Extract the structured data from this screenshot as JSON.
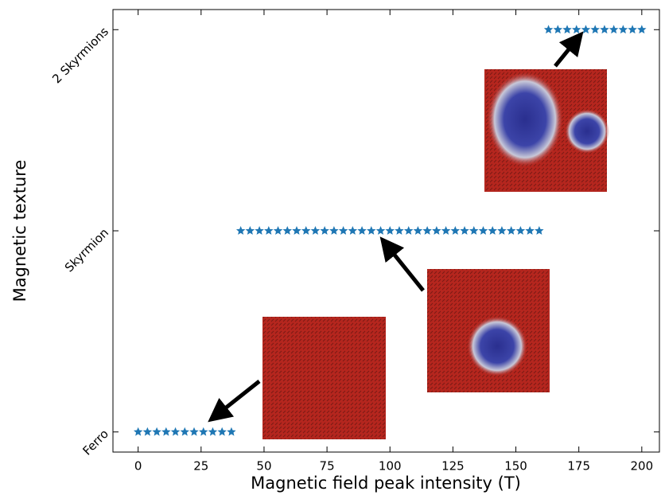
{
  "chart_data": {
    "type": "scatter",
    "xlabel": "Magnetic field peak intensity (T)",
    "ylabel": "Magnetic texture",
    "color": "#1f77b4",
    "x": [
      0,
      3.7,
      7.41,
      11.11,
      14.81,
      18.52,
      22.22,
      25.93,
      29.63,
      33.33,
      37.04,
      40.74,
      44.44,
      48.15,
      51.85,
      55.56,
      59.26,
      62.96,
      66.67,
      70.37,
      74.07,
      77.78,
      81.48,
      85.19,
      88.89,
      92.59,
      96.3,
      100,
      103.7,
      107.41,
      111.11,
      114.81,
      118.52,
      122.22,
      125.93,
      129.63,
      133.33,
      137.04,
      140.74,
      144.44,
      148.15,
      151.85,
      155.56,
      159.26,
      162.96,
      166.67,
      170.37,
      174.07,
      177.78,
      181.48,
      185.19,
      188.89,
      192.59,
      196.3,
      200
    ],
    "values": [
      0,
      0,
      0,
      0,
      0,
      0,
      0,
      0,
      0,
      0,
      0,
      1,
      1,
      1,
      1,
      1,
      1,
      1,
      1,
      1,
      1,
      1,
      1,
      1,
      1,
      1,
      1,
      1,
      1,
      1,
      1,
      1,
      1,
      1,
      1,
      1,
      1,
      1,
      1,
      1,
      1,
      1,
      1,
      1,
      2,
      2,
      2,
      2,
      2,
      2,
      2,
      2,
      2,
      2,
      2
    ],
    "xlim": [
      -10,
      207
    ],
    "xticks": [
      0,
      25,
      50,
      75,
      100,
      125,
      150,
      175,
      200
    ],
    "ylim": [
      -0.1,
      2.1
    ],
    "yticks": [
      {
        "value": 0,
        "label": "Ferro"
      },
      {
        "value": 1,
        "label": "Skyrmion"
      },
      {
        "value": 2,
        "label": "2 Skyrmions"
      }
    ]
  }
}
